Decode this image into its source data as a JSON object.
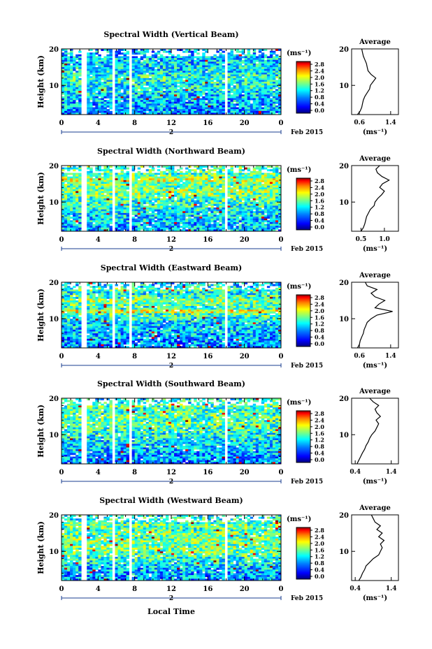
{
  "figure": {
    "xlabel": "Local Time",
    "date_label": "Feb 2015",
    "day_marker": "2",
    "ylabel": "Height (km)",
    "cbar_unit": "(ms⁻¹)",
    "avg_title": "Average",
    "avg_xlabel": "(ms⁻¹)"
  },
  "chart_data": [
    {
      "type": "heatmap",
      "title": "Spectral Width (Vertical Beam)",
      "x_ticks": [
        "0",
        "4",
        "8",
        "12",
        "16",
        "20",
        "0"
      ],
      "y_ticks": [
        "20",
        "10"
      ],
      "xlim": [
        0,
        24
      ],
      "ylim": [
        2,
        20
      ],
      "cbar_ticks": [
        "2.8",
        "2.4",
        "2.0",
        "1.6",
        "1.2",
        "0.8",
        "0.4",
        "0.0"
      ],
      "colorscale": [
        "#00007f",
        "#0000ff",
        "#007fff",
        "#00ffff",
        "#7fff7f",
        "#ffff00",
        "#ff7f00",
        "#ff0000",
        "#7f0000"
      ],
      "data_gaps_hours": [
        2.4,
        5.7,
        7.6,
        18.0
      ],
      "average_profile": {
        "x_ticks": [
          "0.6",
          "1.4"
        ],
        "xlim": [
          0.4,
          1.6
        ],
        "heights_km": [
          2,
          3,
          4,
          5,
          6,
          7,
          8,
          9,
          10,
          11,
          12,
          13,
          14,
          15,
          16,
          17,
          18,
          19,
          20
        ],
        "values": [
          0.55,
          0.62,
          0.66,
          0.68,
          0.7,
          0.74,
          0.8,
          0.86,
          0.88,
          0.95,
          1.02,
          0.9,
          0.82,
          0.8,
          0.78,
          0.74,
          0.7,
          0.68,
          0.66
        ]
      }
    },
    {
      "type": "heatmap",
      "title": "Spectral Width (Northward Beam)",
      "x_ticks": [
        "0",
        "4",
        "8",
        "12",
        "16",
        "20",
        "0"
      ],
      "y_ticks": [
        "20",
        "10"
      ],
      "xlim": [
        0,
        24
      ],
      "ylim": [
        2,
        20
      ],
      "cbar_ticks": [
        "2.8",
        "2.4",
        "2.0",
        "1.6",
        "1.2",
        "0.8",
        "0.4",
        "0.0"
      ],
      "colorscale": [
        "#00007f",
        "#0000ff",
        "#007fff",
        "#00ffff",
        "#7fff7f",
        "#ffff00",
        "#ff7f00",
        "#ff0000",
        "#7f0000"
      ],
      "data_gaps_hours": [
        2.4,
        5.7,
        7.6,
        18.0
      ],
      "average_profile": {
        "x_ticks": [
          "0.5",
          "1.0"
        ],
        "xlim": [
          0.3,
          1.3
        ],
        "heights_km": [
          2,
          3,
          4,
          5,
          6,
          7,
          8,
          9,
          10,
          11,
          12,
          13,
          14,
          15,
          16,
          17,
          18,
          19,
          20
        ],
        "values": [
          0.5,
          0.55,
          0.58,
          0.6,
          0.62,
          0.66,
          0.7,
          0.78,
          0.8,
          0.86,
          0.94,
          1.0,
          0.9,
          0.96,
          1.1,
          0.95,
          0.85,
          0.82,
          0.9
        ]
      }
    },
    {
      "type": "heatmap",
      "title": "Spectral Width (Eastward Beam)",
      "x_ticks": [
        "0",
        "4",
        "8",
        "12",
        "16",
        "20",
        "0"
      ],
      "y_ticks": [
        "20",
        "10"
      ],
      "xlim": [
        0,
        24
      ],
      "ylim": [
        2,
        20
      ],
      "cbar_ticks": [
        "2.8",
        "2.4",
        "2.0",
        "1.6",
        "1.2",
        "0.8",
        "0.4",
        "0.0"
      ],
      "colorscale": [
        "#00007f",
        "#0000ff",
        "#007fff",
        "#00ffff",
        "#7fff7f",
        "#ffff00",
        "#ff7f00",
        "#ff0000",
        "#7f0000"
      ],
      "data_gaps_hours": [
        2.4,
        5.7,
        7.6,
        18.0
      ],
      "average_profile": {
        "x_ticks": [
          "0.6",
          "1.4"
        ],
        "xlim": [
          0.4,
          1.6
        ],
        "heights_km": [
          2,
          3,
          4,
          5,
          6,
          7,
          8,
          9,
          10,
          11,
          12,
          13,
          14,
          15,
          16,
          17,
          18,
          19,
          20
        ],
        "values": [
          0.55,
          0.6,
          0.62,
          0.66,
          0.7,
          0.72,
          0.76,
          0.8,
          0.9,
          1.05,
          1.45,
          1.0,
          1.1,
          1.25,
          1.0,
          0.9,
          1.05,
          0.8,
          0.75
        ]
      }
    },
    {
      "type": "heatmap",
      "title": "Spectral Width (Southward Beam)",
      "x_ticks": [
        "0",
        "4",
        "8",
        "12",
        "16",
        "20",
        "0"
      ],
      "y_ticks": [
        "20",
        "10"
      ],
      "xlim": [
        0,
        24
      ],
      "ylim": [
        2,
        20
      ],
      "cbar_ticks": [
        "2.8",
        "2.4",
        "2.0",
        "1.6",
        "1.2",
        "0.8",
        "0.4",
        "0.0"
      ],
      "colorscale": [
        "#00007f",
        "#0000ff",
        "#007fff",
        "#00ffff",
        "#7fff7f",
        "#ffff00",
        "#ff7f00",
        "#ff0000",
        "#7f0000"
      ],
      "data_gaps_hours": [
        2.4,
        5.7,
        7.6,
        18.0
      ],
      "average_profile": {
        "x_ticks": [
          "0.4",
          "1.4"
        ],
        "xlim": [
          0.3,
          1.6
        ],
        "heights_km": [
          2,
          3,
          4,
          5,
          6,
          7,
          8,
          9,
          10,
          11,
          12,
          13,
          14,
          15,
          16,
          17,
          18,
          19,
          20
        ],
        "values": [
          0.45,
          0.5,
          0.55,
          0.6,
          0.66,
          0.7,
          0.76,
          0.8,
          0.86,
          0.95,
          1.0,
          1.05,
          0.98,
          1.1,
          1.0,
          0.95,
          1.05,
          0.9,
          0.8
        ]
      }
    },
    {
      "type": "heatmap",
      "title": "Spectral Width (Westward Beam)",
      "x_ticks": [
        "0",
        "4",
        "8",
        "12",
        "16",
        "20",
        "0"
      ],
      "y_ticks": [
        "20",
        "10"
      ],
      "xlim": [
        0,
        24
      ],
      "ylim": [
        2,
        20
      ],
      "cbar_ticks": [
        "2.8",
        "2.4",
        "2.0",
        "1.6",
        "1.2",
        "0.8",
        "0.4",
        "0.0"
      ],
      "colorscale": [
        "#00007f",
        "#0000ff",
        "#007fff",
        "#00ffff",
        "#7fff7f",
        "#ffff00",
        "#ff7f00",
        "#ff0000",
        "#7f0000"
      ],
      "data_gaps_hours": [
        2.4,
        5.7,
        7.6,
        18.0
      ],
      "average_profile": {
        "x_ticks": [
          "0.4",
          "1.4"
        ],
        "xlim": [
          0.3,
          1.6
        ],
        "heights_km": [
          2,
          3,
          4,
          5,
          6,
          7,
          8,
          9,
          10,
          11,
          12,
          13,
          14,
          15,
          16,
          17,
          18,
          19,
          20
        ],
        "values": [
          0.5,
          0.56,
          0.6,
          0.66,
          0.7,
          0.8,
          0.9,
          1.05,
          1.1,
          1.15,
          1.1,
          1.2,
          1.05,
          1.15,
          1.0,
          1.1,
          0.95,
          0.9,
          0.85
        ]
      }
    }
  ]
}
